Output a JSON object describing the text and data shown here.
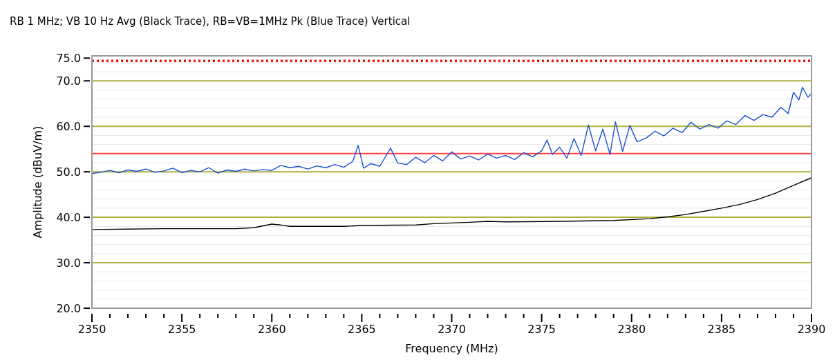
{
  "chart_data": {
    "type": "line",
    "title": "RB 1 MHz; VB 10 Hz Avg (Black Trace), RB=VB=1MHz Pk (Blue Trace) Vertical",
    "xlabel": "Frequency (MHz)",
    "ylabel": "Amplitude (dBuV/m)",
    "xlim": [
      2350,
      2390
    ],
    "xticks": [
      2350,
      {
        "value": 2351,
        "label": null
      },
      {
        "value": 2352,
        "label": null
      },
      {
        "value": 2353,
        "label": null
      },
      {
        "value": 2354,
        "label": null
      },
      2355,
      {
        "value": 2356,
        "label": null
      },
      {
        "value": 2357,
        "label": null
      },
      {
        "value": 2358,
        "label": null
      },
      {
        "value": 2359,
        "label": null
      },
      2360,
      {
        "value": 2361,
        "label": null
      },
      {
        "value": 2362,
        "label": null
      },
      {
        "value": 2363,
        "label": null
      },
      {
        "value": 2364,
        "label": null
      },
      2365,
      {
        "value": 2366,
        "label": null
      },
      {
        "value": 2367,
        "label": null
      },
      {
        "value": 2368,
        "label": null
      },
      {
        "value": 2369,
        "label": null
      },
      2370,
      {
        "value": 2371,
        "label": null
      },
      {
        "value": 2372,
        "label": null
      },
      {
        "value": 2373,
        "label": null
      },
      {
        "value": 2374,
        "label": null
      },
      2375,
      {
        "value": 2376,
        "label": null
      },
      {
        "value": 2377,
        "label": null
      },
      {
        "value": 2378,
        "label": null
      },
      {
        "value": 2379,
        "label": null
      },
      2380,
      {
        "value": 2381,
        "label": null
      },
      {
        "value": 2382,
        "label": null
      },
      {
        "value": 2383,
        "label": null
      },
      {
        "value": 2384,
        "label": null
      },
      2385,
      {
        "value": 2386,
        "label": null
      },
      {
        "value": 2387,
        "label": null
      },
      {
        "value": 2388,
        "label": null
      },
      {
        "value": 2389,
        "label": null
      },
      2390
    ],
    "ylim": [
      20,
      75.5
    ],
    "yticks": [
      {
        "value": 20,
        "label": "20.0"
      },
      {
        "value": 30,
        "label": "30.0"
      },
      {
        "value": 40,
        "label": "40.0"
      },
      {
        "value": 50,
        "label": "50.0"
      },
      {
        "value": 60,
        "label": "60.0"
      },
      {
        "value": 70,
        "label": "70.0"
      },
      {
        "value": 75,
        "label": "75.0"
      }
    ],
    "grid": "y",
    "marker": "none",
    "line_style": "solid",
    "ref_lines": [
      {
        "axis": "y",
        "value": 54,
        "label": null,
        "color": "#ff4040",
        "line_style": "solid"
      },
      {
        "axis": "y",
        "value": 74.4,
        "label": null,
        "color": "#ee1111",
        "line_style": "dotted"
      }
    ],
    "series": [
      {
        "color": "#1a4fd6",
        "x": [
          2350,
          2350.5,
          2351,
          2351.5,
          2352,
          2352.5,
          2353,
          2353.5,
          2354,
          2354.5,
          2355,
          2355.5,
          2356,
          2356.5,
          2357,
          2357.5,
          2358,
          2358.5,
          2359,
          2359.5,
          2360,
          2360.5,
          2361,
          2361.5,
          2362,
          2362.5,
          2363,
          2363.5,
          2364,
          2364.5,
          2364.8,
          2365.1,
          2365.5,
          2366,
          2366.6,
          2367,
          2367.5,
          2368,
          2368.5,
          2369,
          2369.5,
          2370,
          2370.5,
          2371,
          2371.5,
          2372,
          2372.5,
          2373,
          2373.5,
          2374,
          2374.5,
          2375,
          2375.3,
          2375.6,
          2376,
          2376.4,
          2376.8,
          2377.2,
          2377.6,
          2378,
          2378.4,
          2378.8,
          2379.1,
          2379.5,
          2379.9,
          2380.3,
          2380.8,
          2381.3,
          2381.8,
          2382.3,
          2382.8,
          2383.3,
          2383.8,
          2384.3,
          2384.8,
          2385.3,
          2385.8,
          2386.3,
          2386.8,
          2387.3,
          2387.8,
          2388.3,
          2388.7,
          2389,
          2389.3,
          2389.5,
          2389.8,
          2390
        ],
        "values": [
          49.6,
          49.9,
          50.3,
          49.8,
          50.4,
          50.1,
          50.6,
          49.9,
          50.2,
          50.8,
          49.8,
          50.3,
          50.0,
          50.9,
          49.7,
          50.4,
          50.1,
          50.6,
          50.2,
          50.5,
          50.3,
          51.4,
          50.9,
          51.2,
          50.6,
          51.3,
          50.9,
          51.6,
          51.0,
          52.3,
          55.8,
          50.8,
          51.8,
          51.2,
          55.2,
          51.9,
          51.6,
          53.2,
          52.0,
          53.6,
          52.4,
          54.4,
          52.8,
          53.5,
          52.6,
          53.9,
          53.0,
          53.6,
          52.7,
          54.2,
          53.3,
          54.6,
          57.0,
          53.8,
          55.4,
          53.0,
          57.3,
          53.6,
          60.3,
          54.6,
          59.4,
          53.8,
          61.0,
          54.5,
          60.2,
          56.6,
          57.4,
          58.9,
          57.9,
          59.6,
          58.6,
          60.9,
          59.4,
          60.4,
          59.6,
          61.2,
          60.4,
          62.4,
          61.3,
          62.6,
          62.0,
          64.2,
          62.8,
          67.5,
          65.8,
          68.6,
          66.4,
          67.2
        ]
      },
      {
        "color": "#000000",
        "x": [
          2350,
          2352,
          2354,
          2356,
          2358,
          2359,
          2360,
          2360.5,
          2361,
          2364,
          2365,
          2368,
          2369,
          2371,
          2372,
          2373,
          2376,
          2379,
          2381,
          2382,
          2383,
          2384,
          2385,
          2386,
          2387,
          2388,
          2389,
          2390
        ],
        "values": [
          37.3,
          37.4,
          37.5,
          37.5,
          37.5,
          37.7,
          38.5,
          38.3,
          38.0,
          38.0,
          38.2,
          38.3,
          38.6,
          38.9,
          39.1,
          39.0,
          39.1,
          39.3,
          39.7,
          40.1,
          40.6,
          41.3,
          42.0,
          42.8,
          43.9,
          45.3,
          47.0,
          48.7
        ]
      }
    ]
  }
}
